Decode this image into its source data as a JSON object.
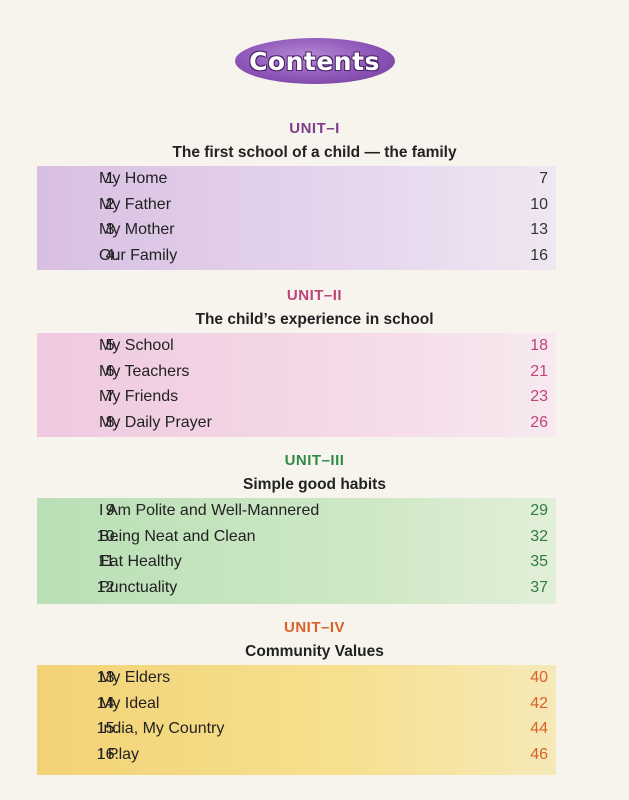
{
  "title": "Contents",
  "units": [
    {
      "label": "UNIT–I",
      "title": "The first school of a child — the family",
      "items": [
        {
          "num": "1.",
          "name": "My Home",
          "page": "7"
        },
        {
          "num": "2.",
          "name": "My Father",
          "page": "10"
        },
        {
          "num": "3.",
          "name": "My Mother",
          "page": "13"
        },
        {
          "num": "4.",
          "name": "Our Family",
          "page": "16"
        }
      ]
    },
    {
      "label": "UNIT–II",
      "title": "The child’s experience in school",
      "items": [
        {
          "num": "5.",
          "name": "My School",
          "page": "18"
        },
        {
          "num": "6.",
          "name": "My Teachers",
          "page": "21"
        },
        {
          "num": "7.",
          "name": "My Friends",
          "page": "23"
        },
        {
          "num": "8.",
          "name": "My Daily Prayer",
          "page": "26"
        }
      ]
    },
    {
      "label": "UNIT–III",
      "title": "Simple good habits",
      "items": [
        {
          "num": "9.",
          "name": "I Am Polite and Well-Mannered",
          "page": "29"
        },
        {
          "num": "10.",
          "name": "Being Neat and Clean",
          "page": "32"
        },
        {
          "num": "11.",
          "name": "Eat Healthy",
          "page": "35"
        },
        {
          "num": "12.",
          "name": "Punctuality",
          "page": "37"
        }
      ]
    },
    {
      "label": "UNIT–IV",
      "title": "Community Values",
      "items": [
        {
          "num": "13.",
          "name": "My Elders",
          "page": "40"
        },
        {
          "num": "14.",
          "name": "My Ideal",
          "page": "42"
        },
        {
          "num": "15.",
          "name": "India, My Country",
          "page": "44"
        },
        {
          "num": "16.",
          "name": "I Play",
          "page": "46"
        }
      ]
    }
  ],
  "colors": {
    "unit1": "#7b3f8c",
    "unit2": "#c0427a",
    "unit3": "#2f8a48",
    "unit4": "#d8632a",
    "title_pill": "#8e55b8"
  }
}
